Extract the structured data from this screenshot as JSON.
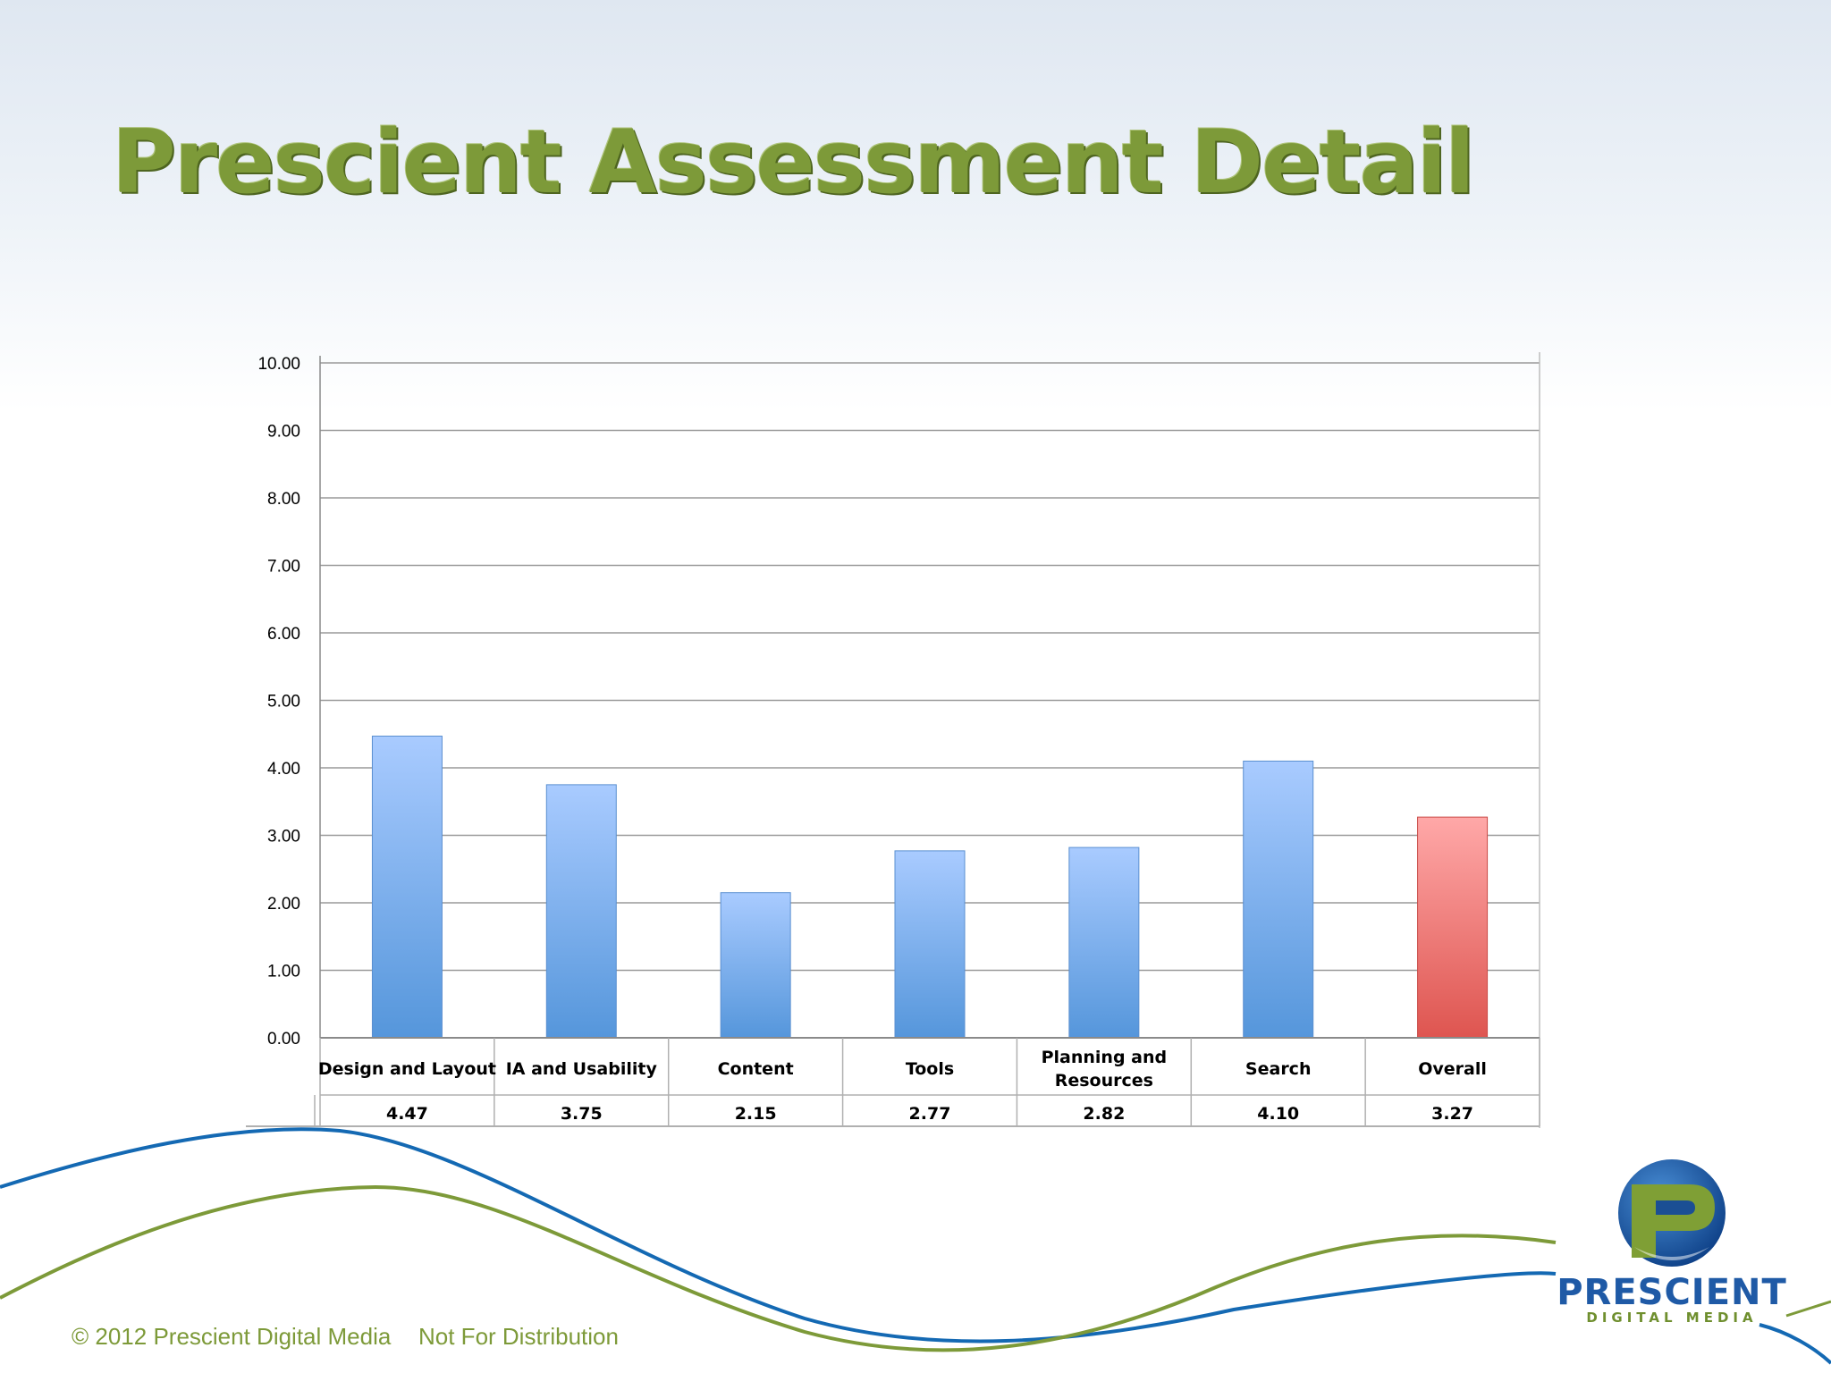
{
  "slide": {
    "title": "Prescient Assessment Detail",
    "footer_copyright": "© 2012 Prescient Digital Media",
    "footer_notice": "Not For Distribution"
  },
  "logo": {
    "word": "PRESCIENT",
    "sub": "DIGITAL MEDIA"
  },
  "colors": {
    "title": "#7d9a39",
    "bar_blue_top": "#a9cbff",
    "bar_blue_bottom": "#5596db",
    "bar_red_top": "#ffa8a8",
    "bar_red_bottom": "#de5550",
    "wave_blue": "#1469b3",
    "wave_green": "#7d9a39"
  },
  "chart_data": {
    "type": "bar",
    "categories": [
      "Design and Layout",
      "IA and Usability",
      "Content",
      "Tools",
      "Planning and Resources",
      "Search",
      "Overall"
    ],
    "values": [
      4.47,
      3.75,
      2.15,
      2.77,
      2.82,
      4.1,
      3.27
    ],
    "value_labels": [
      "4.47",
      "3.75",
      "2.15",
      "2.77",
      "2.82",
      "4.10",
      "3.27"
    ],
    "highlight_category": "Overall",
    "yticks": [
      "0.00",
      "1.00",
      "2.00",
      "3.00",
      "4.00",
      "5.00",
      "6.00",
      "7.00",
      "8.00",
      "9.00",
      "10.00"
    ],
    "ylim": [
      0,
      10
    ],
    "grid": true,
    "data_table": true,
    "xlabel": "",
    "ylabel": ""
  }
}
